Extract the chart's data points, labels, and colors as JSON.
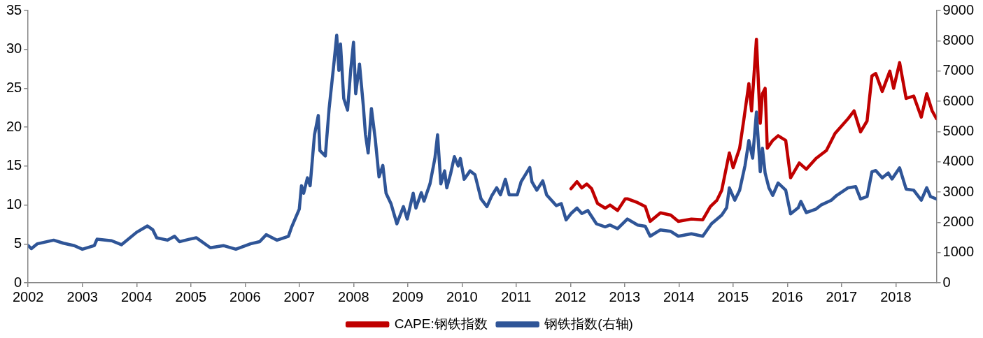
{
  "chart_data": {
    "type": "line",
    "xlim": [
      2002,
      2018.75
    ],
    "xticks": [
      2002,
      2003,
      2004,
      2005,
      2006,
      2007,
      2008,
      2009,
      2010,
      2011,
      2012,
      2013,
      2014,
      2015,
      2016,
      2017,
      2018
    ],
    "ylim": [
      0,
      35
    ],
    "yticks": [
      0,
      5,
      10,
      15,
      20,
      25,
      30,
      35
    ],
    "y2lim": [
      0,
      9000
    ],
    "y2ticks": [
      0,
      1000,
      2000,
      3000,
      4000,
      5000,
      6000,
      7000,
      8000,
      9000
    ],
    "grid": false,
    "legend": "bottom",
    "marker": "none",
    "line_style": "solid",
    "series": [
      {
        "name": "CAPE:钢铁指数",
        "color": "#c00000",
        "x": [
          2012.01,
          2012.12,
          2012.21,
          2012.3,
          2012.39,
          2012.5,
          2012.64,
          2012.73,
          2012.87,
          2013.01,
          2013.05,
          2013.24,
          2013.38,
          2013.47,
          2013.66,
          2013.85,
          2013.99,
          2014.23,
          2014.44,
          2014.58,
          2014.7,
          2014.79,
          2014.93,
          2015.0,
          2015.12,
          2015.2,
          2015.29,
          2015.34,
          2015.43,
          2015.5,
          2015.54,
          2015.59,
          2015.63,
          2015.73,
          2015.83,
          2015.97,
          2016.06,
          2016.22,
          2016.35,
          2016.53,
          2016.72,
          2016.88,
          2017.12,
          2017.23,
          2017.35,
          2017.47,
          2017.56,
          2017.63,
          2017.75,
          2017.89,
          2017.96,
          2018.07,
          2018.19,
          2018.33,
          2018.47,
          2018.57,
          2018.67,
          2018.75
        ],
        "values": [
          12.1,
          13.0,
          12.2,
          12.7,
          12.1,
          10.2,
          9.6,
          10.0,
          9.3,
          10.8,
          10.8,
          10.3,
          9.8,
          7.9,
          9.0,
          8.7,
          7.9,
          8.2,
          8.1,
          9.8,
          10.6,
          11.9,
          16.7,
          14.8,
          17.3,
          21.1,
          25.6,
          22.1,
          31.3,
          20.5,
          24.3,
          25.0,
          17.3,
          18.3,
          18.9,
          18.3,
          13.5,
          15.4,
          14.6,
          16.0,
          17.0,
          19.2,
          21.1,
          22.1,
          19.4,
          20.8,
          26.6,
          26.9,
          24.6,
          27.2,
          25.0,
          28.3,
          23.7,
          24.0,
          21.3,
          24.3,
          22.1,
          21.1
        ]
      },
      {
        "name": "钢铁指数(右轴)",
        "color": "#2f5597",
        "axis": "y2",
        "x": [
          2002.0,
          2002.06,
          2002.17,
          2002.47,
          2002.65,
          2002.85,
          2003.0,
          2003.22,
          2003.27,
          2003.54,
          2003.72,
          2004.0,
          2004.2,
          2004.3,
          2004.37,
          2004.57,
          2004.7,
          2004.79,
          2004.97,
          2005.1,
          2005.36,
          2005.6,
          2005.83,
          2006.1,
          2006.27,
          2006.39,
          2006.59,
          2006.8,
          2006.86,
          2007.0,
          2007.04,
          2007.08,
          2007.15,
          2007.2,
          2007.28,
          2007.35,
          2007.38,
          2007.48,
          2007.55,
          2007.64,
          2007.69,
          2007.73,
          2007.76,
          2007.82,
          2007.89,
          2007.95,
          2008.0,
          2008.04,
          2008.11,
          2008.18,
          2008.22,
          2008.27,
          2008.33,
          2008.4,
          2008.47,
          2008.54,
          2008.6,
          2008.69,
          2008.8,
          2008.92,
          2008.99,
          2009.1,
          2009.15,
          2009.25,
          2009.3,
          2009.41,
          2009.5,
          2009.55,
          2009.61,
          2009.68,
          2009.72,
          2009.79,
          2009.86,
          2009.93,
          2009.97,
          2010.04,
          2010.15,
          2010.24,
          2010.35,
          2010.46,
          2010.55,
          2010.64,
          2010.71,
          2010.8,
          2010.87,
          2011.02,
          2011.09,
          2011.25,
          2011.29,
          2011.38,
          2011.49,
          2011.56,
          2011.74,
          2011.83,
          2011.92,
          2012.01,
          2012.12,
          2012.21,
          2012.32,
          2012.48,
          2012.64,
          2012.73,
          2012.87,
          2013.05,
          2013.24,
          2013.38,
          2013.47,
          2013.66,
          2013.85,
          2013.99,
          2014.23,
          2014.44,
          2014.6,
          2014.79,
          2014.88,
          2014.93,
          2015.03,
          2015.12,
          2015.22,
          2015.29,
          2015.36,
          2015.43,
          2015.5,
          2015.54,
          2015.59,
          2015.66,
          2015.73,
          2015.83,
          2015.97,
          2016.06,
          2016.2,
          2016.25,
          2016.35,
          2016.53,
          2016.62,
          2016.81,
          2016.91,
          2017.12,
          2017.26,
          2017.35,
          2017.47,
          2017.56,
          2017.63,
          2017.75,
          2017.86,
          2017.93,
          2018.07,
          2018.19,
          2018.33,
          2018.47,
          2018.57,
          2018.64,
          2018.75
        ],
        "values": [
          1230,
          1130,
          1290,
          1410,
          1310,
          1230,
          1110,
          1230,
          1440,
          1390,
          1260,
          1670,
          1880,
          1750,
          1490,
          1410,
          1540,
          1360,
          1440,
          1490,
          1160,
          1230,
          1110,
          1290,
          1360,
          1590,
          1410,
          1540,
          1850,
          2440,
          3210,
          2960,
          3470,
          3210,
          4890,
          5530,
          4370,
          4190,
          5760,
          7280,
          8180,
          7020,
          7890,
          6090,
          5710,
          7070,
          7950,
          6250,
          7230,
          5860,
          4910,
          4290,
          5760,
          4760,
          3500,
          3880,
          2960,
          2620,
          1950,
          2520,
          2110,
          2960,
          2470,
          2980,
          2700,
          3270,
          4110,
          4890,
          3270,
          3700,
          3140,
          3600,
          4170,
          3860,
          4110,
          3420,
          3700,
          3570,
          2780,
          2520,
          2880,
          3140,
          2910,
          3420,
          2910,
          2910,
          3340,
          3810,
          3340,
          3060,
          3370,
          2910,
          2550,
          2620,
          2080,
          2290,
          2470,
          2290,
          2390,
          1950,
          1850,
          1910,
          1790,
          2110,
          1910,
          1870,
          1540,
          1750,
          1700,
          1540,
          1620,
          1540,
          1950,
          2240,
          2480,
          3140,
          2730,
          3060,
          3880,
          4700,
          4120,
          5640,
          3670,
          4450,
          3630,
          3140,
          2890,
          3300,
          3060,
          2280,
          2480,
          2690,
          2320,
          2440,
          2570,
          2730,
          2890,
          3140,
          3180,
          2770,
          2850,
          3670,
          3710,
          3470,
          3630,
          3430,
          3800,
          3100,
          3060,
          2730,
          3140,
          2850,
          2770
        ]
      }
    ]
  }
}
